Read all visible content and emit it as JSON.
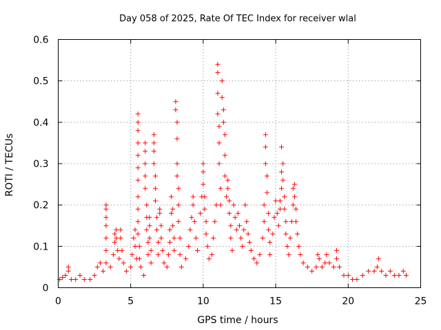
{
  "chart_data": {
    "type": "scatter",
    "title": "Day 058 of 2025, Rate Of TEC Index for receiver wlal",
    "xlabel": "GPS time / hours",
    "ylabel": "ROTI / TECUs",
    "xlim": [
      0,
      25
    ],
    "ylim": [
      0,
      0.6
    ],
    "xticks": [
      0,
      5,
      10,
      15,
      20,
      25
    ],
    "xtick_labels": [
      "0",
      "5",
      "10",
      "15",
      "20",
      "25"
    ],
    "yticks": [
      0,
      0.1,
      0.2,
      0.3,
      0.4,
      0.5,
      0.6
    ],
    "ytick_labels": [
      "0",
      "0.1",
      "0.2",
      "0.3",
      "0.4",
      "0.5",
      "0.6"
    ],
    "grid": true,
    "marker": "+",
    "color": "#ff0000",
    "series": [
      {
        "name": "ROTI",
        "points": [
          [
            0.1,
            0.02
          ],
          [
            0.3,
            0.025
          ],
          [
            0.5,
            0.03
          ],
          [
            0.7,
            0.05
          ],
          [
            0.7,
            0.04
          ],
          [
            0.9,
            0.02
          ],
          [
            1.2,
            0.02
          ],
          [
            1.5,
            0.03
          ],
          [
            1.8,
            0.02
          ],
          [
            2.2,
            0.02
          ],
          [
            2.5,
            0.03
          ],
          [
            2.7,
            0.05
          ],
          [
            2.9,
            0.06
          ],
          [
            3.1,
            0.04
          ],
          [
            3.3,
            0.2
          ],
          [
            3.3,
            0.19
          ],
          [
            3.3,
            0.17
          ],
          [
            3.3,
            0.15
          ],
          [
            3.3,
            0.12
          ],
          [
            3.3,
            0.09
          ],
          [
            3.3,
            0.06
          ],
          [
            3.6,
            0.05
          ],
          [
            3.8,
            0.08
          ],
          [
            3.9,
            0.11
          ],
          [
            3.9,
            0.13
          ],
          [
            4.0,
            0.14
          ],
          [
            4.0,
            0.12
          ],
          [
            4.1,
            0.09
          ],
          [
            4.2,
            0.07
          ],
          [
            4.3,
            0.14
          ],
          [
            4.3,
            0.12
          ],
          [
            4.4,
            0.09
          ],
          [
            4.5,
            0.06
          ],
          [
            4.7,
            0.04
          ],
          [
            5.0,
            0.05
          ],
          [
            5.1,
            0.08
          ],
          [
            5.2,
            0.12
          ],
          [
            5.3,
            0.14
          ],
          [
            5.3,
            0.1
          ],
          [
            5.4,
            0.07
          ],
          [
            5.5,
            0.42
          ],
          [
            5.5,
            0.4
          ],
          [
            5.5,
            0.38
          ],
          [
            5.5,
            0.35
          ],
          [
            5.5,
            0.32
          ],
          [
            5.5,
            0.29
          ],
          [
            5.5,
            0.26
          ],
          [
            5.5,
            0.22
          ],
          [
            5.5,
            0.19
          ],
          [
            5.5,
            0.16
          ],
          [
            5.5,
            0.13
          ],
          [
            5.6,
            0.1
          ],
          [
            5.6,
            0.07
          ],
          [
            5.7,
            0.05
          ],
          [
            5.9,
            0.03
          ],
          [
            6.0,
            0.35
          ],
          [
            6.0,
            0.33
          ],
          [
            6.0,
            0.3
          ],
          [
            6.0,
            0.27
          ],
          [
            6.0,
            0.24
          ],
          [
            6.1,
            0.2
          ],
          [
            6.1,
            0.17
          ],
          [
            6.1,
            0.14
          ],
          [
            6.2,
            0.11
          ],
          [
            6.2,
            0.08
          ],
          [
            6.3,
            0.17
          ],
          [
            6.3,
            0.15
          ],
          [
            6.3,
            0.12
          ],
          [
            6.4,
            0.09
          ],
          [
            6.4,
            0.06
          ],
          [
            6.6,
            0.37
          ],
          [
            6.6,
            0.35
          ],
          [
            6.6,
            0.33
          ],
          [
            6.6,
            0.3
          ],
          [
            6.7,
            0.27
          ],
          [
            6.7,
            0.24
          ],
          [
            6.7,
            0.21
          ],
          [
            6.8,
            0.17
          ],
          [
            6.8,
            0.14
          ],
          [
            6.9,
            0.11
          ],
          [
            6.9,
            0.08
          ],
          [
            7.0,
            0.19
          ],
          [
            7.0,
            0.18
          ],
          [
            7.1,
            0.15
          ],
          [
            7.1,
            0.12
          ],
          [
            7.2,
            0.09
          ],
          [
            7.3,
            0.06
          ],
          [
            7.5,
            0.05
          ],
          [
            7.6,
            0.08
          ],
          [
            7.7,
            0.11
          ],
          [
            7.7,
            0.14
          ],
          [
            7.8,
            0.18
          ],
          [
            7.8,
            0.22
          ],
          [
            7.9,
            0.19
          ],
          [
            7.9,
            0.15
          ],
          [
            8.0,
            0.12
          ],
          [
            8.0,
            0.09
          ],
          [
            8.1,
            0.45
          ],
          [
            8.1,
            0.43
          ],
          [
            8.2,
            0.4
          ],
          [
            8.2,
            0.36
          ],
          [
            8.2,
            0.3
          ],
          [
            8.2,
            0.27
          ],
          [
            8.3,
            0.24
          ],
          [
            8.3,
            0.2
          ],
          [
            8.3,
            0.16
          ],
          [
            8.4,
            0.12
          ],
          [
            8.4,
            0.08
          ],
          [
            8.5,
            0.05
          ],
          [
            8.8,
            0.07
          ],
          [
            9.0,
            0.1
          ],
          [
            9.1,
            0.14
          ],
          [
            9.2,
            0.17
          ],
          [
            9.3,
            0.22
          ],
          [
            9.3,
            0.2
          ],
          [
            9.4,
            0.16
          ],
          [
            9.5,
            0.12
          ],
          [
            9.6,
            0.09
          ],
          [
            9.8,
            0.18
          ],
          [
            9.9,
            0.22
          ],
          [
            10.0,
            0.3
          ],
          [
            10.0,
            0.28
          ],
          [
            10.0,
            0.25
          ],
          [
            10.1,
            0.22
          ],
          [
            10.1,
            0.19
          ],
          [
            10.2,
            0.16
          ],
          [
            10.2,
            0.13
          ],
          [
            10.3,
            0.1
          ],
          [
            10.4,
            0.07
          ],
          [
            10.6,
            0.08
          ],
          [
            10.7,
            0.12
          ],
          [
            10.8,
            0.16
          ],
          [
            10.9,
            0.2
          ],
          [
            11.0,
            0.54
          ],
          [
            11.0,
            0.52
          ],
          [
            11.0,
            0.47
          ],
          [
            11.0,
            0.42
          ],
          [
            11.1,
            0.39
          ],
          [
            11.1,
            0.35
          ],
          [
            11.1,
            0.3
          ],
          [
            11.2,
            0.24
          ],
          [
            11.2,
            0.2
          ],
          [
            11.3,
            0.5
          ],
          [
            11.3,
            0.46
          ],
          [
            11.4,
            0.43
          ],
          [
            11.4,
            0.4
          ],
          [
            11.5,
            0.37
          ],
          [
            11.5,
            0.32
          ],
          [
            11.5,
            0.27
          ],
          [
            11.6,
            0.22
          ],
          [
            11.7,
            0.26
          ],
          [
            11.7,
            0.24
          ],
          [
            11.8,
            0.21
          ],
          [
            11.8,
            0.18
          ],
          [
            11.9,
            0.15
          ],
          [
            11.9,
            0.12
          ],
          [
            12.0,
            0.09
          ],
          [
            12.1,
            0.2
          ],
          [
            12.2,
            0.17
          ],
          [
            12.3,
            0.14
          ],
          [
            12.4,
            0.18
          ],
          [
            12.5,
            0.15
          ],
          [
            12.6,
            0.12
          ],
          [
            12.7,
            0.1
          ],
          [
            12.8,
            0.14
          ],
          [
            12.9,
            0.2
          ],
          [
            13.0,
            0.16
          ],
          [
            13.1,
            0.13
          ],
          [
            13.2,
            0.11
          ],
          [
            13.3,
            0.09
          ],
          [
            13.5,
            0.07
          ],
          [
            13.7,
            0.06
          ],
          [
            13.9,
            0.08
          ],
          [
            14.1,
            0.12
          ],
          [
            14.2,
            0.16
          ],
          [
            14.2,
            0.2
          ],
          [
            14.3,
            0.37
          ],
          [
            14.3,
            0.34
          ],
          [
            14.3,
            0.3
          ],
          [
            14.4,
            0.27
          ],
          [
            14.4,
            0.23
          ],
          [
            14.5,
            0.18
          ],
          [
            14.5,
            0.14
          ],
          [
            14.6,
            0.11
          ],
          [
            14.6,
            0.08
          ],
          [
            14.8,
            0.13
          ],
          [
            14.9,
            0.17
          ],
          [
            15.0,
            0.21
          ],
          [
            15.1,
            0.18
          ],
          [
            15.2,
            0.15
          ],
          [
            15.3,
            0.21
          ],
          [
            15.3,
            0.19
          ],
          [
            15.4,
            0.24
          ],
          [
            15.4,
            0.28
          ],
          [
            15.4,
            0.34
          ],
          [
            15.5,
            0.3
          ],
          [
            15.5,
            0.26
          ],
          [
            15.6,
            0.22
          ],
          [
            15.6,
            0.19
          ],
          [
            15.7,
            0.16
          ],
          [
            15.7,
            0.13
          ],
          [
            15.8,
            0.1
          ],
          [
            15.9,
            0.08
          ],
          [
            16.0,
            0.12
          ],
          [
            16.1,
            0.16
          ],
          [
            16.2,
            0.2
          ],
          [
            16.2,
            0.24
          ],
          [
            16.3,
            0.25
          ],
          [
            16.3,
            0.22
          ],
          [
            16.4,
            0.19
          ],
          [
            16.4,
            0.16
          ],
          [
            16.5,
            0.13
          ],
          [
            16.6,
            0.1
          ],
          [
            16.7,
            0.08
          ],
          [
            16.9,
            0.06
          ],
          [
            17.2,
            0.05
          ],
          [
            17.5,
            0.04
          ],
          [
            17.8,
            0.05
          ],
          [
            17.9,
            0.08
          ],
          [
            18.0,
            0.07
          ],
          [
            18.2,
            0.05
          ],
          [
            18.4,
            0.06
          ],
          [
            18.5,
            0.08
          ],
          [
            18.7,
            0.06
          ],
          [
            19.0,
            0.05
          ],
          [
            19.2,
            0.09
          ],
          [
            19.2,
            0.07
          ],
          [
            19.4,
            0.05
          ],
          [
            19.7,
            0.03
          ],
          [
            20.0,
            0.03
          ],
          [
            20.3,
            0.02
          ],
          [
            20.6,
            0.02
          ],
          [
            21.0,
            0.03
          ],
          [
            21.4,
            0.04
          ],
          [
            21.8,
            0.04
          ],
          [
            22.0,
            0.05
          ],
          [
            22.1,
            0.07
          ],
          [
            22.3,
            0.04
          ],
          [
            22.6,
            0.03
          ],
          [
            22.9,
            0.04
          ],
          [
            23.2,
            0.03
          ],
          [
            23.5,
            0.03
          ],
          [
            23.8,
            0.04
          ],
          [
            24.0,
            0.03
          ]
        ]
      }
    ]
  }
}
